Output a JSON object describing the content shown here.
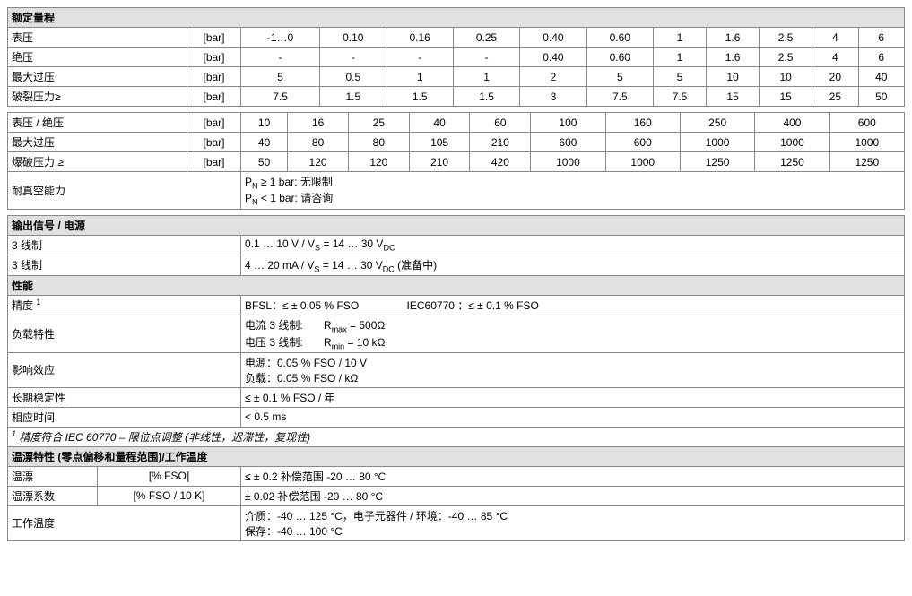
{
  "headers": {
    "rated_range": "额定量程",
    "output_signal": "输出信号 / 电源",
    "performance": "性能",
    "drift": "温漂特性 (零点偏移和量程范围)/工作温度"
  },
  "t1": {
    "r1_label": "表压",
    "r1_unit": "[bar]",
    "r1": [
      "-1…0",
      "0.10",
      "0.16",
      "0.25",
      "0.40",
      "0.60",
      "1",
      "1.6",
      "2.5",
      "4",
      "6"
    ],
    "r2_label": "绝压",
    "r2_unit": "[bar]",
    "r2": [
      "-",
      "-",
      "-",
      "-",
      "0.40",
      "0.60",
      "1",
      "1.6",
      "2.5",
      "4",
      "6"
    ],
    "r3_label": "最大过压",
    "r3_unit": "[bar]",
    "r3": [
      "5",
      "0.5",
      "1",
      "1",
      "2",
      "5",
      "5",
      "10",
      "10",
      "20",
      "40"
    ],
    "r4_label": "破裂压力≥",
    "r4_unit": "[bar]",
    "r4": [
      "7.5",
      "1.5",
      "1.5",
      "1.5",
      "3",
      "7.5",
      "7.5",
      "15",
      "15",
      "25",
      "50"
    ]
  },
  "t2": {
    "r1_label": "表压 / 绝压",
    "r1_unit": "[bar]",
    "r1": [
      "10",
      "16",
      "25",
      "40",
      "60",
      "100",
      "160",
      "250",
      "400",
      "600"
    ],
    "r2_label": "最大过压",
    "r2_unit": "[bar]",
    "r2": [
      "40",
      "80",
      "80",
      "105",
      "210",
      "600",
      "600",
      "1000",
      "1000",
      "1000"
    ],
    "r3_label": "爆破压力 ≥",
    "r3_unit": "[bar]",
    "r3": [
      "50",
      "120",
      "120",
      "210",
      "420",
      "1000",
      "1000",
      "1250",
      "1250",
      "1250"
    ],
    "r4_label": "耐真空能力",
    "r4_val_l1": "P__N__ ≥ 1 bar:  无限制",
    "r4_val_l2": "P__N__ < 1 bar:  请咨询"
  },
  "output": {
    "r1_label": "3 线制",
    "r1_val": "0.1 … 10 V / V__S__ = 14 … 30 V__DC__",
    "r2_label": "3 线制",
    "r2_val": "4 … 20 mA / V__S__ = 14 … 30 V__DC__ (准备中)"
  },
  "perf": {
    "r1_label": "精度 ^1^",
    "r1_val": "BFSL：≤ ± 0.05 % FSO                IEC60770 ：≤ ± 0.1 % FSO",
    "r2_label": "负载特性",
    "r2_l1": "电流 3 线制:       R__max__ = 500Ω",
    "r2_l2": "电压 3 线制:       R__min__ = 10 kΩ",
    "r3_label": "影响效应",
    "r3_l1": "电源：0.05 % FSO / 10 V",
    "r3_l2": "负载：0.05 % FSO / kΩ",
    "r4_label": "长期稳定性",
    "r4_val": "≤ ± 0.1 % FSO / 年",
    "r5_label": "相应时间",
    "r5_val": "< 0.5 ms",
    "note": "^1^ 精度符合 IEC 60770 – 限位点调整 (非线性，迟滞性，复现性)"
  },
  "drift": {
    "r1_label": "温漂",
    "r1_unit": "[% FSO]",
    "r1_val": "≤ ± 0.2 补偿范围  -20 … 80 °C",
    "r2_label": "温漂系数",
    "r2_unit": "[% FSO / 10 K]",
    "r2_val": "± 0.02 补偿范围  -20 … 80 °C",
    "r3_label": "工作温度",
    "r3_l1": "介质：-40 … 125 °C，电子元器件 / 环境：-40 … 85 °C",
    "r3_l2": "保存：-40 … 100 °C"
  },
  "colors": {
    "header_bg": "#e0e0e0",
    "cell_bg": "#ffffff",
    "border": "#888888",
    "text": "#000000"
  }
}
